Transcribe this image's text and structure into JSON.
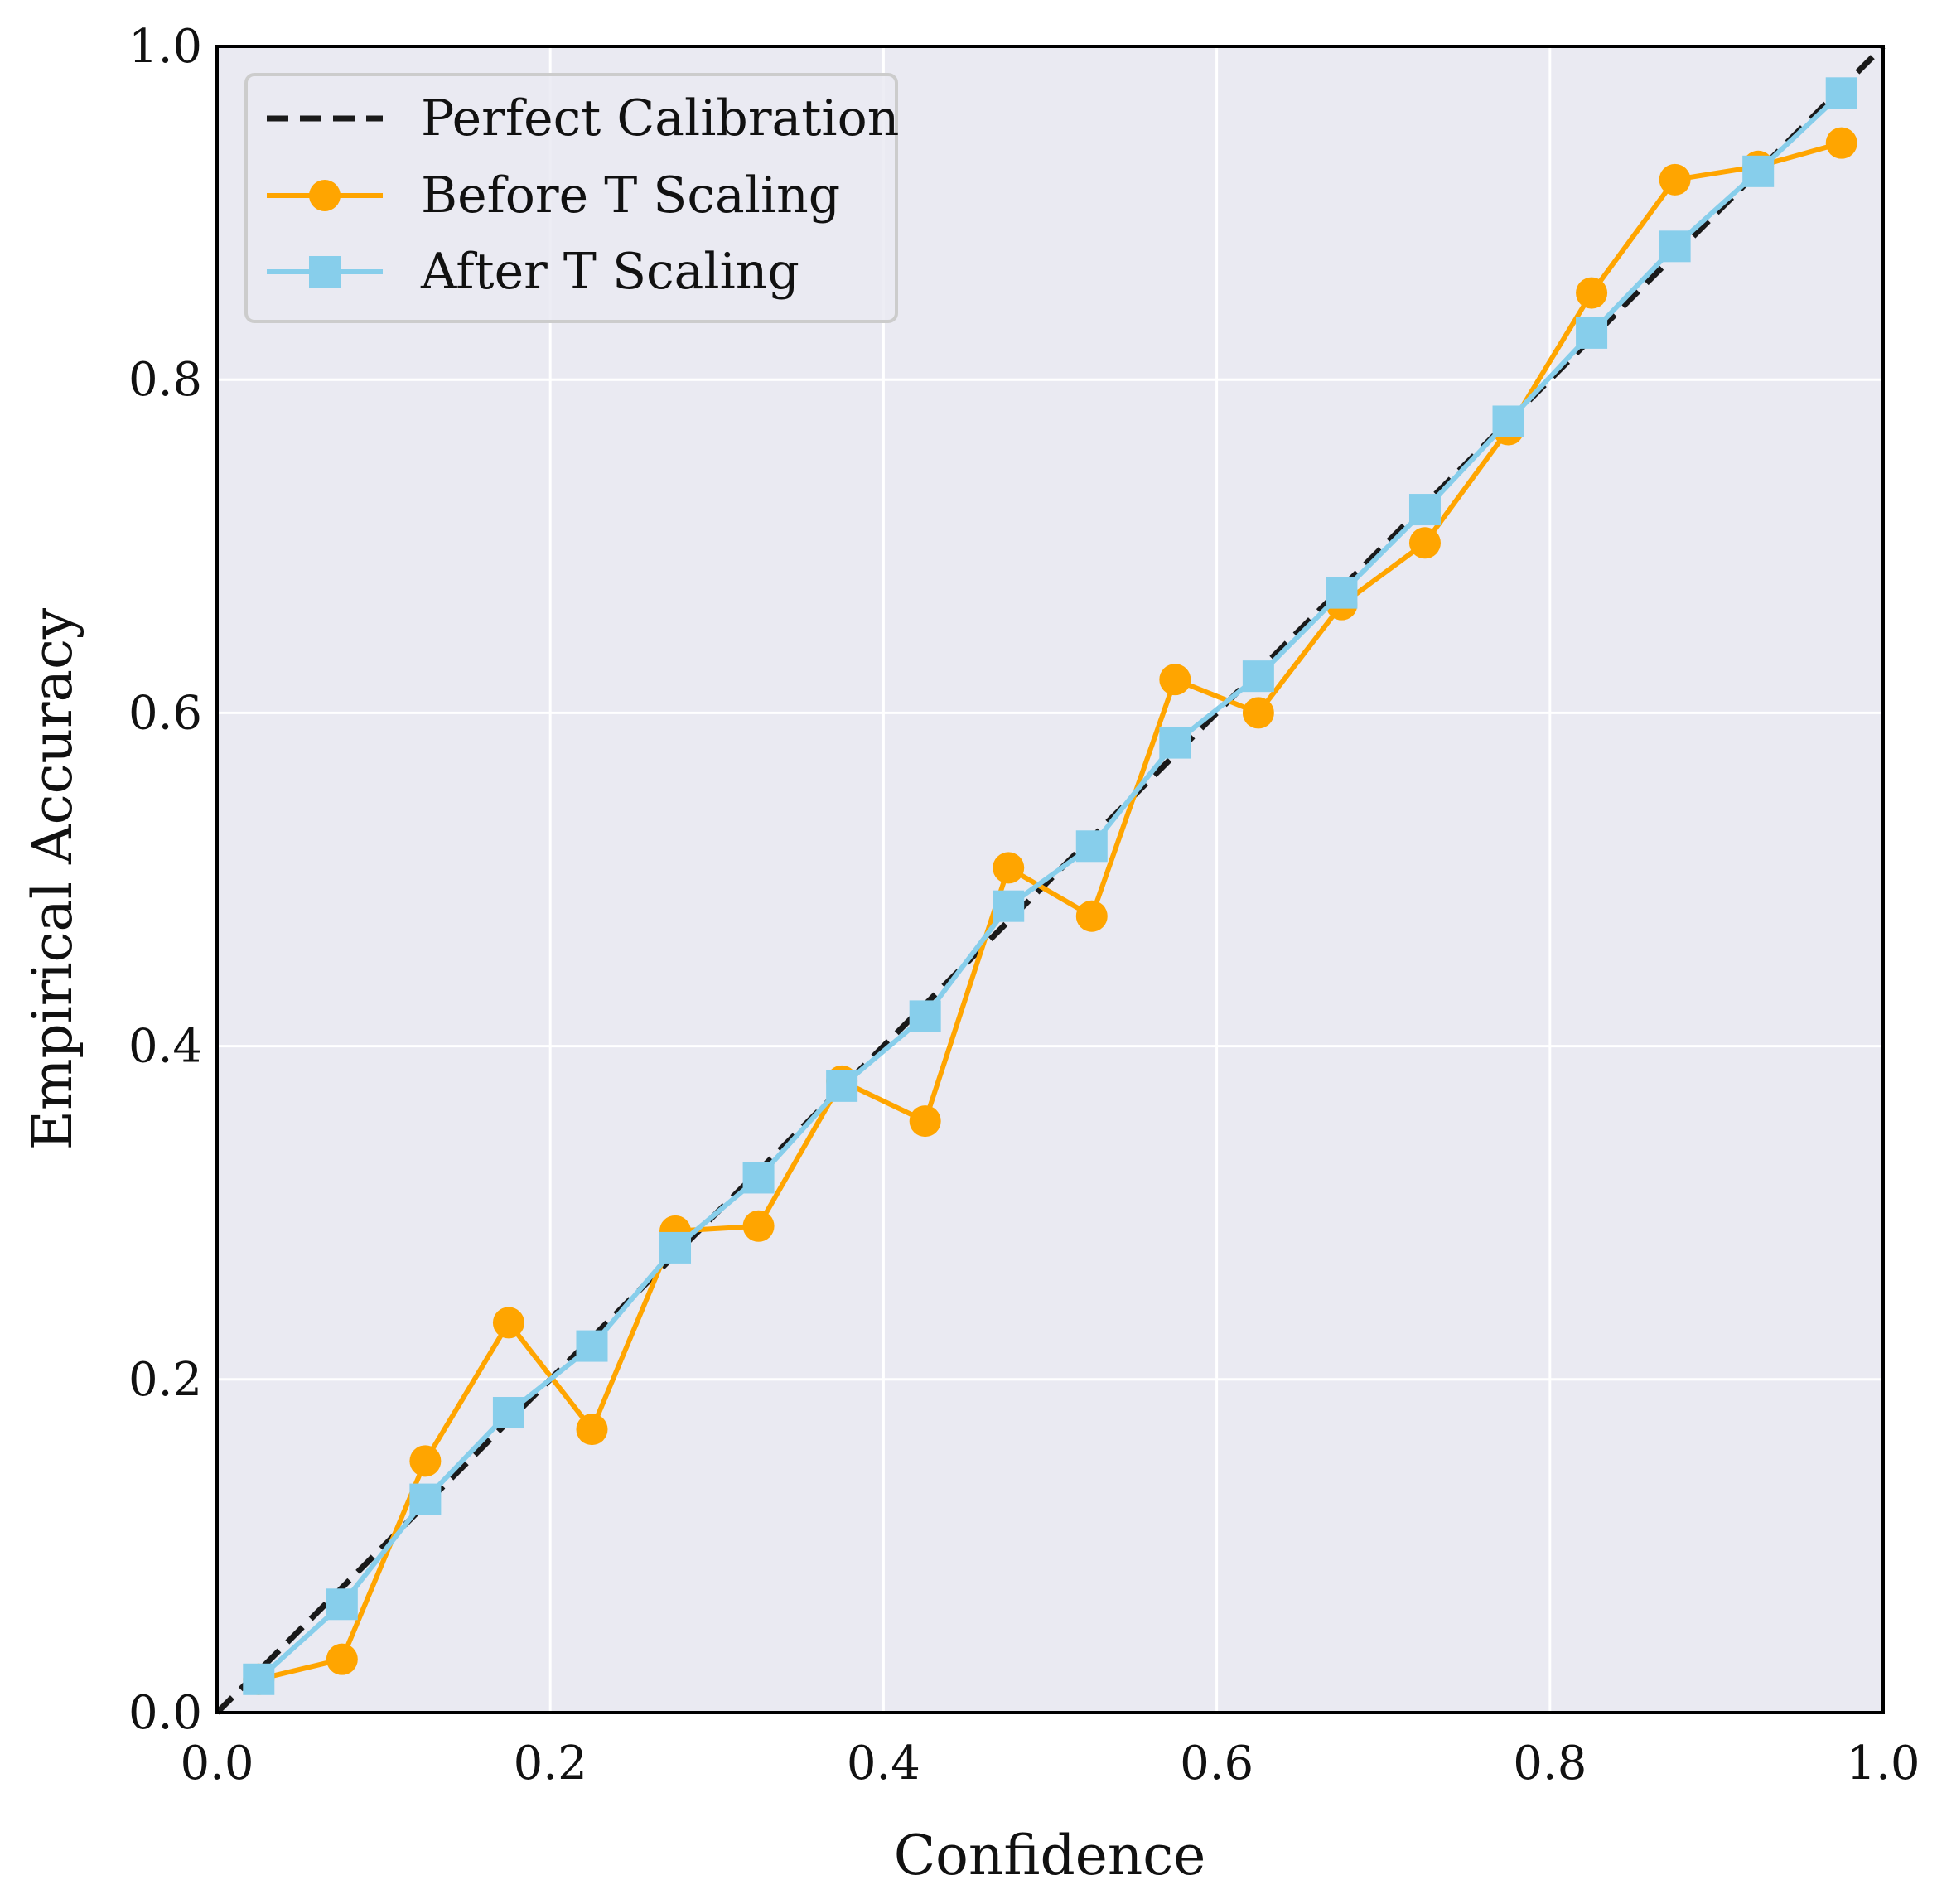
{
  "chart_data": {
    "type": "line",
    "title": "",
    "xlabel": "Confidence",
    "ylabel": "Empirical Accuracy",
    "xlim": [
      0.0,
      1.0
    ],
    "ylim": [
      0.0,
      1.0
    ],
    "grid": true,
    "legend_position": "top-left",
    "x_ticks": [
      "0.0",
      "0.2",
      "0.4",
      "0.6",
      "0.8",
      "1.0"
    ],
    "y_ticks": [
      "0.0",
      "0.2",
      "0.4",
      "0.6",
      "0.8",
      "1.0"
    ],
    "x": [
      0.025,
      0.075,
      0.125,
      0.175,
      0.225,
      0.275,
      0.325,
      0.375,
      0.425,
      0.475,
      0.525,
      0.575,
      0.625,
      0.675,
      0.725,
      0.775,
      0.825,
      0.875,
      0.925,
      0.975
    ],
    "series": [
      {
        "name": "Perfect Calibration",
        "style": "dashed",
        "color": "#1a1a1a",
        "x": [
          0.0,
          1.0
        ],
        "values": [
          0.0,
          1.0
        ]
      },
      {
        "name": "Before T Scaling",
        "marker": "circle",
        "color": "#FFA500",
        "values": [
          0.02,
          0.032,
          0.151,
          0.234,
          0.17,
          0.289,
          0.292,
          0.379,
          0.355,
          0.507,
          0.478,
          0.62,
          0.6,
          0.665,
          0.702,
          0.77,
          0.852,
          0.92,
          0.928,
          0.942
        ]
      },
      {
        "name": "After T Scaling",
        "marker": "square",
        "color": "#87CEEB",
        "values": [
          0.02,
          0.065,
          0.128,
          0.18,
          0.22,
          0.279,
          0.321,
          0.376,
          0.418,
          0.484,
          0.52,
          0.582,
          0.622,
          0.672,
          0.722,
          0.775,
          0.828,
          0.88,
          0.925,
          0.972
        ]
      }
    ]
  }
}
